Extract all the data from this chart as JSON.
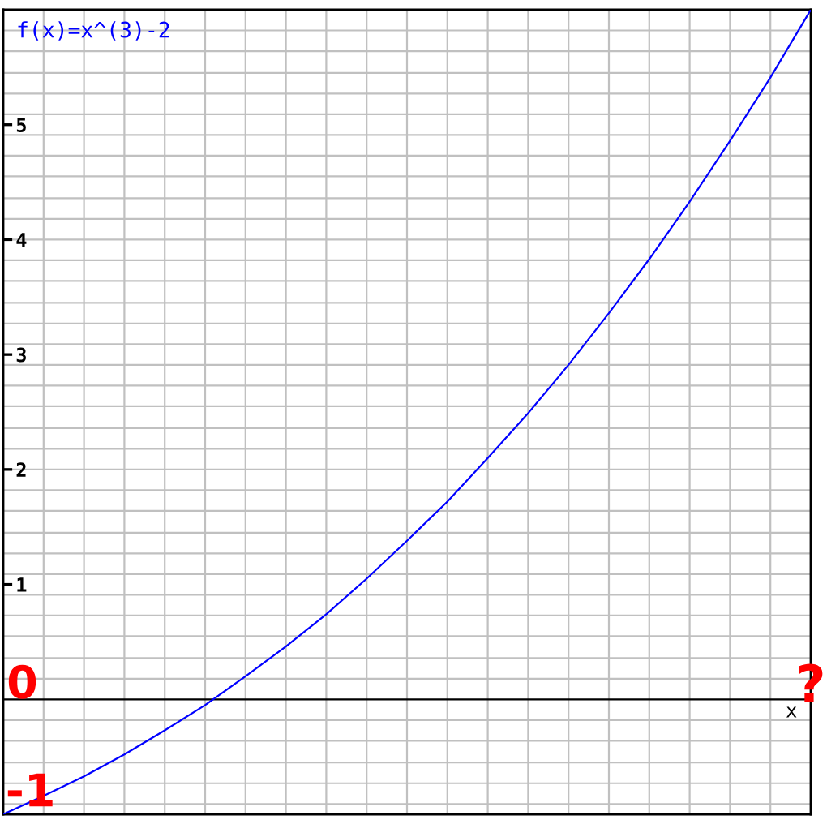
{
  "chart_data": {
    "type": "line",
    "categories": [
      null,
      null,
      null,
      null,
      null,
      null,
      null,
      null,
      null,
      null,
      null,
      null,
      null,
      null,
      null,
      null,
      null,
      null,
      null,
      null,
      null
    ],
    "series": [
      {
        "name": "f(x)=x^(3)-2",
        "color": "#0000ff",
        "values": [
          -1.0,
          -0.84,
          -0.67,
          -0.48,
          -0.27,
          -0.05,
          0.2,
          0.46,
          0.74,
          1.05,
          1.38,
          1.72,
          2.1,
          2.49,
          2.91,
          3.36,
          3.83,
          4.33,
          4.86,
          5.41,
          6.0
        ]
      }
    ],
    "xlabel": "x",
    "ylim": [
      -1,
      6
    ],
    "yticks": [
      {
        "value": -0.91,
        "label": null
      },
      {
        "value": -0.73,
        "label": null
      },
      {
        "value": -0.55,
        "label": null
      },
      {
        "value": -0.36,
        "label": null
      },
      {
        "value": -0.18,
        "label": null
      },
      {
        "value": 0.18,
        "label": null
      },
      {
        "value": 0.36,
        "label": null
      },
      {
        "value": 0.55,
        "label": null
      },
      {
        "value": 0.73,
        "label": null
      },
      {
        "value": 0.91,
        "label": null
      },
      1,
      {
        "value": 1.09,
        "label": null
      },
      {
        "value": 1.27,
        "label": null
      },
      {
        "value": 1.45,
        "label": null
      },
      {
        "value": 1.64,
        "label": null
      },
      {
        "value": 1.82,
        "label": null
      },
      {
        "value": 2,
        "label": null
      },
      2,
      {
        "value": 2.18,
        "label": null
      },
      {
        "value": 2.36,
        "label": null
      },
      {
        "value": 2.55,
        "label": null
      },
      {
        "value": 2.73,
        "label": null
      },
      {
        "value": 2.91,
        "label": null
      },
      3,
      {
        "value": 3.09,
        "label": null
      },
      {
        "value": 3.27,
        "label": null
      },
      {
        "value": 3.45,
        "label": null
      },
      {
        "value": 3.64,
        "label": null
      },
      {
        "value": 3.82,
        "label": null
      },
      {
        "value": 4,
        "label": null
      },
      4,
      {
        "value": 4.18,
        "label": null
      },
      {
        "value": 4.36,
        "label": null
      },
      {
        "value": 4.55,
        "label": null
      },
      {
        "value": 4.73,
        "label": null
      },
      {
        "value": 4.91,
        "label": null
      },
      5,
      {
        "value": 5.09,
        "label": null
      },
      {
        "value": 5.27,
        "label": null
      },
      {
        "value": 5.45,
        "label": null
      },
      {
        "value": 5.64,
        "label": null
      },
      {
        "value": 5.82,
        "label": null
      }
    ],
    "tick_labels": "y",
    "grid": true,
    "ref_lines": [
      {
        "axis": "y",
        "value": 0,
        "color": "#000000"
      }
    ],
    "annotations": [
      {
        "text": "0",
        "y": 0
      },
      "-1",
      {
        "text": "?",
        "y": 0
      }
    ]
  }
}
